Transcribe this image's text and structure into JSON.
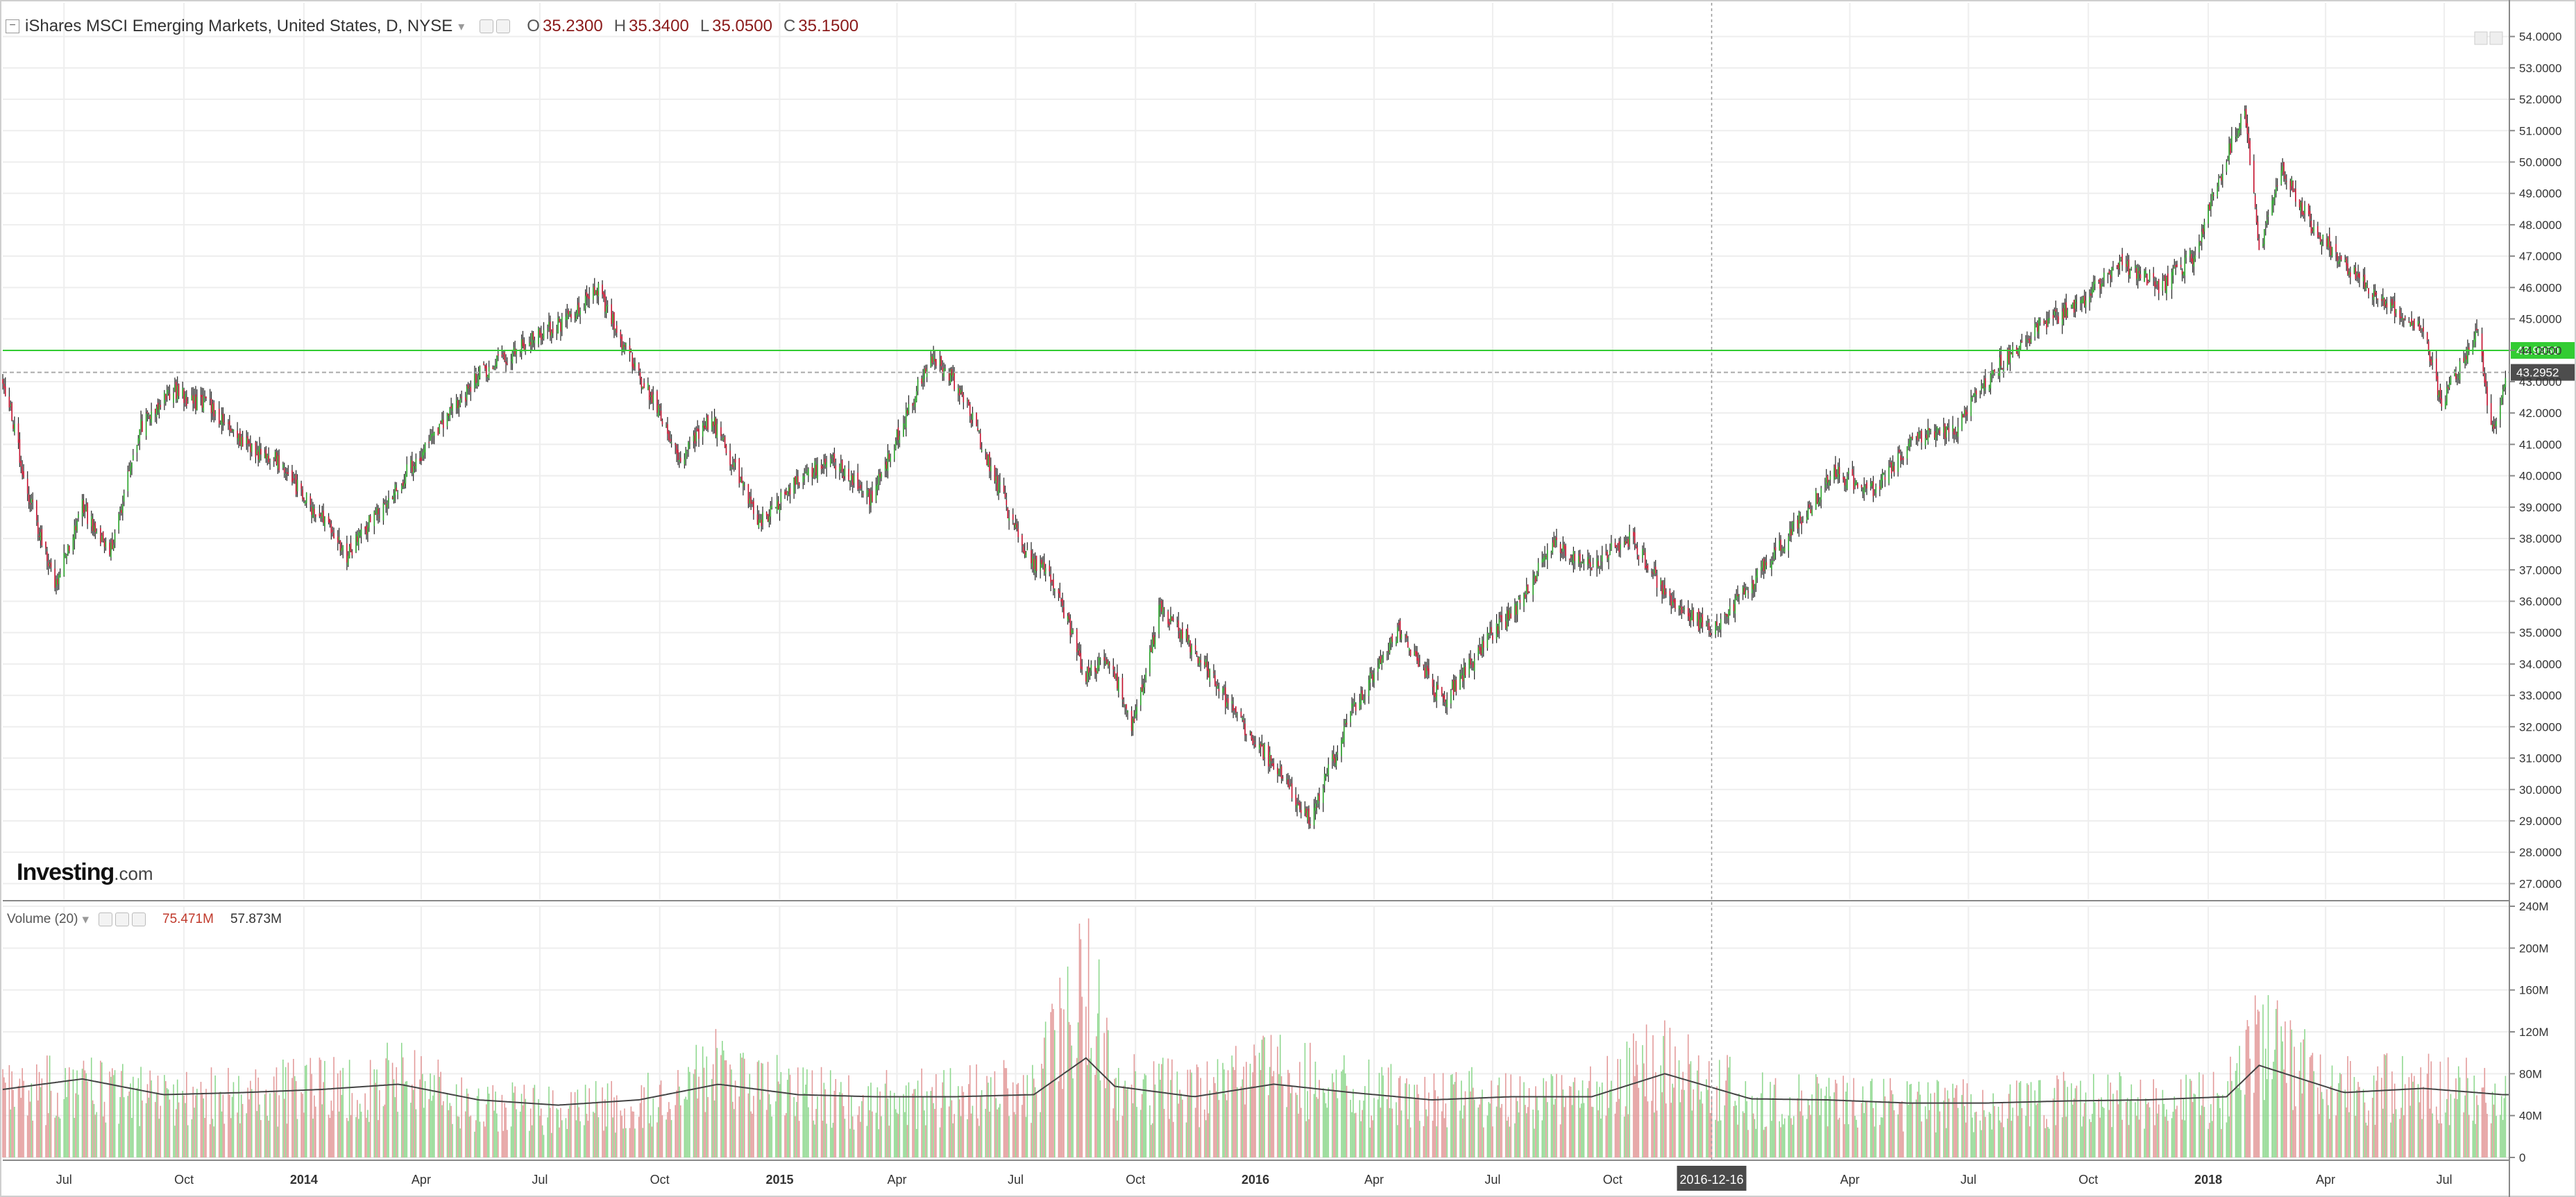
{
  "header": {
    "title": "iShares MSCI Emerging Markets, United States, D, NYSE",
    "dropdown_icon": "chevron-down-icon",
    "o_label": "O",
    "o_value": "35.2300",
    "h_label": "H",
    "h_value": "35.3400",
    "l_label": "L",
    "l_value": "35.0500",
    "c_label": "C",
    "c_value": "35.1500"
  },
  "volume_header": {
    "label": "Volume (20)",
    "value1": "75.471M",
    "value2": "57.873M"
  },
  "logo": {
    "main": "Investing",
    "suffix": ".com"
  },
  "colors": {
    "up": "#26a226",
    "down": "#c8102e",
    "vol_up": "#8fd88f",
    "vol_down": "#e39a9a",
    "grid": "#eeeeee",
    "last_price": "#33cc33",
    "ref_price": "#4d4d4d"
  },
  "chart_data": [
    {
      "type": "candlestick",
      "title": "iShares MSCI Emerging Markets, United States, D, NYSE",
      "ylim": [
        26.5,
        54.5
      ],
      "y_ticks": [
        "27.0000",
        "28.0000",
        "29.0000",
        "30.0000",
        "31.0000",
        "32.0000",
        "33.0000",
        "34.0000",
        "35.0000",
        "36.0000",
        "37.0000",
        "38.0000",
        "39.0000",
        "40.0000",
        "41.0000",
        "42.0000",
        "43.0000",
        "44.0000",
        "45.0000",
        "46.0000",
        "47.0000",
        "48.0000",
        "49.0000",
        "50.0000",
        "51.0000",
        "52.0000",
        "53.0000",
        "54.0000"
      ],
      "x_ticks": [
        "Jul",
        "Oct",
        "2014",
        "Apr",
        "Jul",
        "Oct",
        "2015",
        "Apr",
        "Jul",
        "Oct",
        "2016",
        "Apr",
        "Jul",
        "Oct",
        "2016-12-16",
        "Apr",
        "Jul",
        "Oct",
        "2018",
        "Apr",
        "Jul"
      ],
      "x_range": [
        "2013-05-15",
        "2018-08-20"
      ],
      "close_series": {
        "x": [
          "2013-05-15",
          "2013-06-01",
          "2013-06-24",
          "2013-07-15",
          "2013-08-05",
          "2013-08-28",
          "2013-09-20",
          "2013-10-21",
          "2013-11-15",
          "2013-12-10",
          "2014-01-02",
          "2014-02-03",
          "2014-03-10",
          "2014-04-15",
          "2014-05-15",
          "2014-06-20",
          "2014-07-15",
          "2014-08-15",
          "2014-09-05",
          "2014-10-01",
          "2014-10-16",
          "2014-11-10",
          "2014-12-16",
          "2015-01-15",
          "2015-02-10",
          "2015-03-12",
          "2015-04-27",
          "2015-05-20",
          "2015-06-15",
          "2015-07-08",
          "2015-07-29",
          "2015-08-24",
          "2015-09-10",
          "2015-09-29",
          "2015-10-20",
          "2015-11-15",
          "2015-12-15",
          "2016-01-20",
          "2016-02-11",
          "2016-03-15",
          "2016-04-20",
          "2016-05-24",
          "2016-06-27",
          "2016-07-20",
          "2016-08-15",
          "2016-09-15",
          "2016-10-15",
          "2016-11-14",
          "2016-12-16",
          "2017-01-20",
          "2017-02-20",
          "2017-03-20",
          "2017-04-20",
          "2017-05-20",
          "2017-06-20",
          "2017-07-25",
          "2017-08-25",
          "2017-09-25",
          "2017-10-25",
          "2017-11-25",
          "2017-12-20",
          "2018-01-29",
          "2018-02-09",
          "2018-02-27",
          "2018-03-20",
          "2018-04-20",
          "2018-05-20",
          "2018-06-15",
          "2018-06-28",
          "2018-07-15",
          "2018-07-27",
          "2018-08-06",
          "2018-08-15",
          "2018-08-20"
        ],
        "close": [
          43.2,
          39.8,
          36.5,
          39.0,
          37.5,
          41.5,
          42.7,
          42.2,
          41.0,
          40.5,
          39.3,
          37.5,
          39.5,
          41.5,
          43.2,
          44.2,
          44.8,
          45.9,
          44.0,
          42.0,
          40.5,
          41.8,
          38.5,
          39.8,
          40.6,
          39.2,
          43.9,
          42.7,
          40.0,
          37.5,
          36.8,
          33.6,
          34.2,
          32.0,
          35.8,
          34.5,
          32.5,
          30.5,
          29.0,
          32.5,
          35.0,
          32.8,
          34.8,
          35.8,
          37.8,
          37.2,
          38.0,
          36.0,
          35.0,
          36.8,
          38.5,
          40.1,
          39.5,
          41.2,
          41.5,
          43.5,
          44.8,
          45.5,
          46.8,
          46.0,
          47.0,
          51.8,
          47.2,
          49.8,
          48.0,
          46.5,
          45.3,
          44.8,
          42.3,
          43.6,
          44.7,
          41.5,
          42.5,
          43.4
        ]
      },
      "reference_lines": [
        {
          "label": "43.9950",
          "value": 43.995
        },
        {
          "label": "43.2952",
          "value": 43.2952
        }
      ],
      "crosshair_x": "2016-12-16"
    },
    {
      "type": "bar",
      "title": "Volume (20)",
      "ylim": [
        0,
        240
      ],
      "y_ticks": [
        "0",
        "40M",
        "80M",
        "120M",
        "160M",
        "200M",
        "240M"
      ],
      "volume_series": {
        "x": [
          "2013-05-15",
          "2013-07-15",
          "2013-09-15",
          "2013-11-15",
          "2014-01-15",
          "2014-03-15",
          "2014-05-15",
          "2014-07-15",
          "2014-09-15",
          "2014-11-15",
          "2015-01-15",
          "2015-03-15",
          "2015-05-15",
          "2015-07-15",
          "2015-08-24",
          "2015-09-15",
          "2015-11-15",
          "2016-01-15",
          "2016-03-15",
          "2016-05-15",
          "2016-07-15",
          "2016-09-15",
          "2016-11-10",
          "2017-01-15",
          "2017-03-15",
          "2017-05-15",
          "2017-07-15",
          "2017-09-15",
          "2017-11-15",
          "2018-01-15",
          "2018-02-09",
          "2018-04-15",
          "2018-06-15",
          "2018-08-15"
        ],
        "volume": [
          60,
          70,
          55,
          60,
          65,
          75,
          50,
          45,
          55,
          85,
          60,
          55,
          60,
          65,
          180,
          70,
          60,
          85,
          65,
          55,
          60,
          60,
          95,
          55,
          55,
          50,
          50,
          55,
          55,
          60,
          110,
          65,
          70,
          60
        ],
        "ma20": [
          65,
          75,
          60,
          62,
          65,
          70,
          55,
          50,
          55,
          70,
          60,
          58,
          58,
          60,
          95,
          68,
          58,
          70,
          62,
          55,
          58,
          58,
          80,
          56,
          55,
          52,
          52,
          54,
          55,
          58,
          88,
          62,
          66,
          60
        ]
      },
      "current_values": [
        "75.471M",
        "57.873M"
      ]
    }
  ]
}
